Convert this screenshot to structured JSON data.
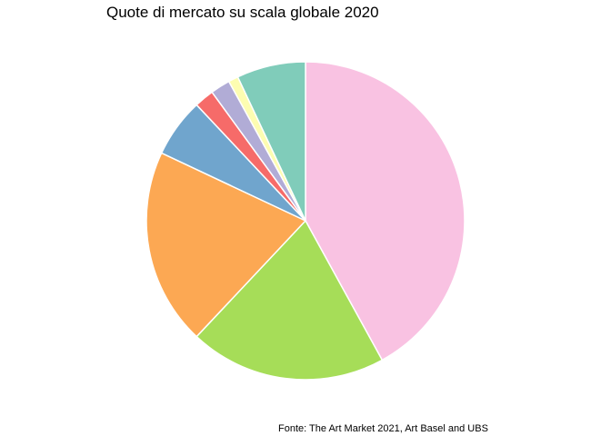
{
  "chart_data": {
    "type": "pie",
    "title": "Quote di mercato su scala globale 2020",
    "caption": "Fonte: The Art Market 2021, Art Basel and UBS",
    "start_angle": "12 o'clock",
    "direction": "clockwise",
    "legend": "none",
    "slices": [
      {
        "value": 42,
        "color": "#f9c2e2"
      },
      {
        "value": 20,
        "color": "#a6dd58"
      },
      {
        "value": 20,
        "color": "#fca853"
      },
      {
        "value": 6,
        "color": "#70a5cd"
      },
      {
        "value": 2,
        "color": "#f66b69"
      },
      {
        "value": 2,
        "color": "#b1acd6"
      },
      {
        "value": 1,
        "color": "#fdfdb1"
      },
      {
        "value": 7,
        "color": "#80ccba"
      }
    ]
  }
}
